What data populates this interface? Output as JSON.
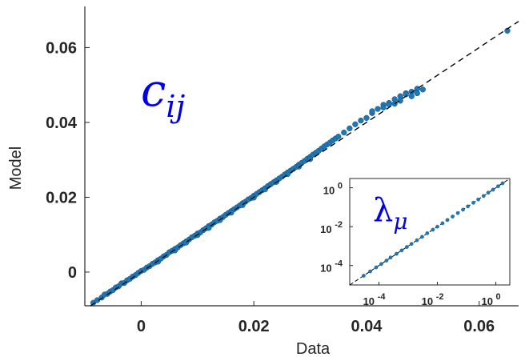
{
  "chart_data": [
    {
      "type": "scatter",
      "xlabel": "Data",
      "ylabel": "Model",
      "annotation": "c",
      "annotation_sub": "ij",
      "xlim": [
        -0.01,
        0.067
      ],
      "ylim": [
        -0.009,
        0.071
      ],
      "xticks": [
        0,
        0.02,
        0.04,
        0.06
      ],
      "yticks": [
        0,
        0.02,
        0.04,
        0.06
      ],
      "xtick_labels": [
        "0",
        "0.02",
        "0.04",
        "0.06"
      ],
      "ytick_labels": [
        "0",
        "0.02",
        "0.04",
        "0.06"
      ],
      "reference_line": "y = x",
      "grid": false,
      "legend": "none",
      "point_color": "#1f77b4",
      "annotation_color": "#0000ee",
      "points": [
        [
          -0.0085,
          -0.0082
        ],
        [
          -0.0078,
          -0.0075
        ],
        [
          -0.007,
          -0.0068
        ],
        [
          -0.0065,
          -0.006
        ],
        [
          -0.006,
          -0.0058
        ],
        [
          -0.0055,
          -0.0052
        ],
        [
          -0.005,
          -0.0048
        ],
        [
          -0.0045,
          -0.0041
        ],
        [
          -0.004,
          -0.0038
        ],
        [
          -0.0035,
          -0.003
        ],
        [
          -0.003,
          -0.0029
        ],
        [
          -0.0025,
          -0.0022
        ],
        [
          -0.002,
          -0.0018
        ],
        [
          -0.0015,
          -0.0012
        ],
        [
          -0.001,
          -0.0008
        ],
        [
          -0.0005,
          -0.0002
        ],
        [
          0.0,
          0.0003
        ],
        [
          0.0005,
          0.0006
        ],
        [
          0.001,
          0.0012
        ],
        [
          0.0015,
          0.0016
        ],
        [
          0.002,
          0.0022
        ],
        [
          0.0025,
          0.0026
        ],
        [
          0.003,
          0.0032
        ],
        [
          0.0035,
          0.0036
        ],
        [
          0.004,
          0.0042
        ],
        [
          0.0045,
          0.0046
        ],
        [
          0.005,
          0.0053
        ],
        [
          0.0055,
          0.0057
        ],
        [
          0.006,
          0.0062
        ],
        [
          0.0065,
          0.0066
        ],
        [
          0.007,
          0.0072
        ],
        [
          0.0075,
          0.0077
        ],
        [
          0.008,
          0.0082
        ],
        [
          0.0085,
          0.0087
        ],
        [
          0.009,
          0.0093
        ],
        [
          0.0095,
          0.0097
        ],
        [
          0.01,
          0.0103
        ],
        [
          0.0105,
          0.0106
        ],
        [
          0.011,
          0.0112
        ],
        [
          0.0115,
          0.0117
        ],
        [
          0.012,
          0.0123
        ],
        [
          0.0125,
          0.0127
        ],
        [
          0.013,
          0.0133
        ],
        [
          0.0135,
          0.0137
        ],
        [
          0.014,
          0.0143
        ],
        [
          0.0145,
          0.0147
        ],
        [
          0.015,
          0.0153
        ],
        [
          0.0155,
          0.0158
        ],
        [
          0.016,
          0.0163
        ],
        [
          0.0165,
          0.0168
        ],
        [
          0.017,
          0.0173
        ],
        [
          0.0175,
          0.0178
        ],
        [
          0.018,
          0.0184
        ],
        [
          0.0185,
          0.0188
        ],
        [
          0.019,
          0.0194
        ],
        [
          0.0195,
          0.0198
        ],
        [
          0.02,
          0.0204
        ],
        [
          0.0205,
          0.0209
        ],
        [
          0.021,
          0.0214
        ],
        [
          0.0215,
          0.0219
        ],
        [
          0.022,
          0.0224
        ],
        [
          0.0225,
          0.023
        ],
        [
          0.023,
          0.0235
        ],
        [
          0.0235,
          0.024
        ],
        [
          0.024,
          0.0245
        ],
        [
          0.0245,
          0.025
        ],
        [
          0.025,
          0.0255
        ],
        [
          0.0255,
          0.0261
        ],
        [
          0.026,
          0.0266
        ],
        [
          0.0265,
          0.0271
        ],
        [
          0.027,
          0.0276
        ],
        [
          0.0275,
          0.0281
        ],
        [
          0.028,
          0.0287
        ],
        [
          0.0285,
          0.0292
        ],
        [
          0.029,
          0.0297
        ],
        [
          0.0295,
          0.0303
        ],
        [
          0.03,
          0.0308
        ],
        [
          0.0305,
          0.0314
        ],
        [
          0.031,
          0.0319
        ],
        [
          0.0315,
          0.0324
        ],
        [
          0.032,
          0.033
        ],
        [
          0.0325,
          0.0336
        ],
        [
          0.033,
          0.0341
        ],
        [
          0.0335,
          0.0346
        ],
        [
          0.034,
          0.0352
        ],
        [
          0.0345,
          0.0357
        ],
        [
          0.035,
          0.0362
        ],
        [
          0.036,
          0.0373
        ],
        [
          0.037,
          0.0384
        ],
        [
          0.038,
          0.0395
        ],
        [
          0.039,
          0.0405
        ],
        [
          0.04,
          0.0412
        ],
        [
          0.041,
          0.0425
        ],
        [
          0.042,
          0.0436
        ],
        [
          0.043,
          0.0447
        ],
        [
          0.044,
          0.0452
        ],
        [
          0.045,
          0.0462
        ],
        [
          0.046,
          0.047
        ],
        [
          0.047,
          0.0478
        ],
        [
          0.048,
          0.0482
        ],
        [
          0.049,
          0.049
        ],
        [
          0.05,
          0.0488
        ],
        [
          0.041,
          0.043
        ],
        [
          0.043,
          0.044
        ],
        [
          0.045,
          0.045
        ],
        [
          0.047,
          0.0475
        ],
        [
          0.048,
          0.047
        ],
        [
          0.049,
          0.0478
        ],
        [
          0.044,
          0.0448
        ],
        [
          0.046,
          0.0458
        ],
        [
          0.008,
          0.0079
        ],
        [
          0.012,
          0.0118
        ],
        [
          0.016,
          0.0159
        ],
        [
          0.02,
          0.0199
        ],
        [
          0.024,
          0.0241
        ],
        [
          0.028,
          0.0282
        ],
        [
          0.003,
          0.0028
        ],
        [
          0.006,
          0.0058
        ],
        [
          0.01,
          0.0099
        ],
        [
          0.014,
          0.0139
        ],
        [
          0.018,
          0.0179
        ],
        [
          0.022,
          0.0221
        ],
        [
          0.026,
          0.0262
        ],
        [
          0.03,
          0.0302
        ],
        [
          0.065,
          0.0645
        ]
      ]
    },
    {
      "type": "scatter",
      "annotation": "λ",
      "annotation_sub": "μ",
      "xscale": "log",
      "yscale": "log",
      "xlim": [
        1e-05,
        3
      ],
      "ylim": [
        1e-05,
        3
      ],
      "xticks": [
        0.0001,
        0.01,
        1
      ],
      "yticks": [
        0.0001,
        0.01,
        1
      ],
      "xtick_labels": [
        {
          "base": "10",
          "exp": "-4"
        },
        {
          "base": "10",
          "exp": "-2"
        },
        {
          "base": "10",
          "exp": "0"
        }
      ],
      "ytick_labels": [
        {
          "base": "10",
          "exp": "-4"
        },
        {
          "base": "10",
          "exp": "-2"
        },
        {
          "base": "10",
          "exp": "0"
        }
      ],
      "reference_line": "y = x",
      "grid": false,
      "legend": "none",
      "point_color": "#1f77b4",
      "annotation_color": "#0000ee",
      "points": [
        [
          3e-05,
          3e-05
        ],
        [
          5e-05,
          5e-05
        ],
        [
          8e-05,
          8e-05
        ],
        [
          0.00012,
          0.00012
        ],
        [
          0.00018,
          0.00018
        ],
        [
          0.00025,
          0.00026
        ],
        [
          0.0004,
          0.0004
        ],
        [
          0.0006,
          0.0006
        ],
        [
          0.0009,
          0.0009
        ],
        [
          0.0013,
          0.0013
        ],
        [
          0.002,
          0.002
        ],
        [
          0.003,
          0.003
        ],
        [
          0.0045,
          0.0046
        ],
        [
          0.007,
          0.007
        ],
        [
          0.01,
          0.01
        ],
        [
          0.015,
          0.015
        ],
        [
          0.022,
          0.022
        ],
        [
          0.033,
          0.033
        ],
        [
          0.05,
          0.05
        ],
        [
          0.075,
          0.075
        ],
        [
          0.11,
          0.11
        ],
        [
          0.17,
          0.17
        ],
        [
          0.25,
          0.25
        ],
        [
          0.38,
          0.38
        ],
        [
          0.55,
          0.56
        ],
        [
          0.8,
          0.8
        ],
        [
          1.2,
          1.2
        ],
        [
          1.7,
          1.7
        ]
      ]
    }
  ]
}
